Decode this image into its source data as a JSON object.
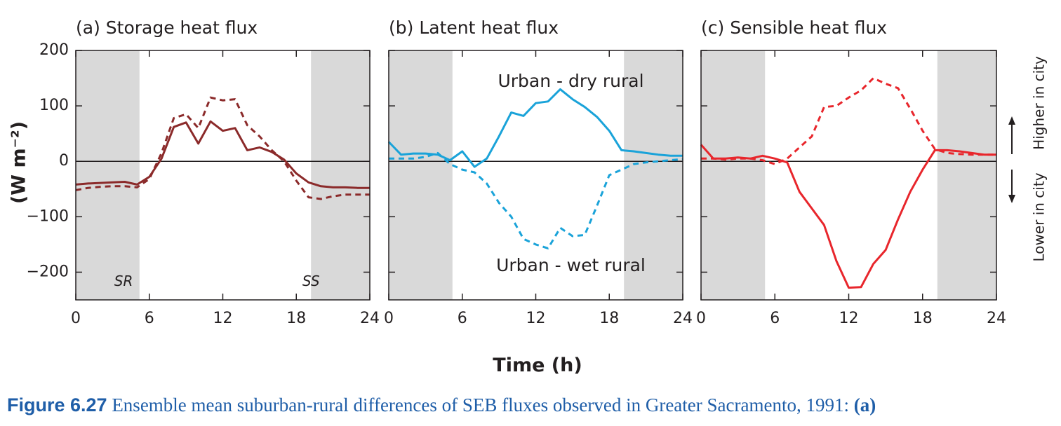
{
  "colors": {
    "storage": "#8b2a2a",
    "latent": "#1aa3d9",
    "sensible": "#e8262c",
    "night_shade": "#d9d9d9",
    "text": "#231f20",
    "caption": "#1f5ea8"
  },
  "figure": {
    "ylabel": "(W m⁻²)",
    "xlabel": "Time (h)",
    "side_labels": {
      "higher": "Higher in city",
      "lower": "Lower in city"
    },
    "caption": {
      "number": "Figure 6.27",
      "text": "Ensemble mean suburban-rural differences of SEB fluxes observed in Greater Sacramento, 1991:",
      "tail": "(a)"
    }
  },
  "chart_data": [
    {
      "type": "line",
      "title": "(a) Storage heat flux",
      "xlim": [
        0,
        24
      ],
      "ylim": [
        -250,
        200
      ],
      "xticks": [
        0,
        6,
        12,
        18,
        24
      ],
      "yticks": [
        200,
        100,
        0,
        -100,
        -200
      ],
      "night_shading": [
        [
          0,
          5.2
        ],
        [
          19.2,
          24
        ]
      ],
      "annotations": [
        "SR",
        "SS"
      ],
      "series": [
        {
          "style": "solid",
          "color": "storage",
          "x": [
            0,
            1,
            2,
            3,
            4,
            5,
            6,
            7,
            8,
            9,
            10,
            11,
            12,
            13,
            14,
            15,
            16,
            17,
            18,
            19,
            20,
            21,
            22,
            23,
            24
          ],
          "y": [
            -42,
            -40,
            -39,
            -38,
            -37,
            -42,
            -28,
            5,
            62,
            70,
            32,
            72,
            55,
            60,
            20,
            25,
            17,
            3,
            -22,
            -38,
            -45,
            -47,
            -47,
            -48,
            -48
          ]
        },
        {
          "style": "dashed",
          "color": "storage",
          "x": [
            0,
            1,
            2,
            3,
            4,
            5,
            6,
            7,
            8,
            9,
            10,
            11,
            12,
            13,
            14,
            15,
            16,
            17,
            18,
            19,
            20,
            21,
            22,
            23,
            24
          ],
          "y": [
            -52,
            -48,
            -46,
            -45,
            -45,
            -47,
            -32,
            15,
            78,
            85,
            60,
            115,
            110,
            112,
            65,
            45,
            20,
            0,
            -35,
            -65,
            -68,
            -63,
            -60,
            -60,
            -60
          ]
        }
      ]
    },
    {
      "type": "line",
      "title": "(b) Latent heat flux",
      "xlim": [
        0,
        24
      ],
      "ylim": [
        -250,
        200
      ],
      "xticks": [
        0,
        6,
        12,
        18,
        24
      ],
      "yticks": [
        200,
        100,
        0,
        -100,
        -200
      ],
      "night_shading": [
        [
          0,
          5.2
        ],
        [
          19.2,
          24
        ]
      ],
      "series": [
        {
          "name": "Urban - dry rural",
          "style": "solid",
          "color": "latent",
          "x": [
            0,
            1,
            2,
            3,
            4,
            5,
            6,
            7,
            8,
            9,
            10,
            11,
            12,
            13,
            14,
            15,
            16,
            17,
            18,
            19,
            20,
            21,
            22,
            23,
            24
          ],
          "y": [
            35,
            12,
            14,
            14,
            12,
            2,
            18,
            -10,
            5,
            45,
            88,
            82,
            105,
            108,
            130,
            112,
            98,
            80,
            55,
            20,
            18,
            15,
            12,
            10,
            10
          ]
        },
        {
          "name": "Urban - wet rural",
          "style": "dashed",
          "color": "latent",
          "x": [
            0,
            1,
            2,
            3,
            4,
            5,
            6,
            7,
            8,
            9,
            10,
            11,
            12,
            13,
            14,
            15,
            16,
            17,
            18,
            19,
            20,
            21,
            22,
            23,
            24
          ],
          "y": [
            5,
            5,
            5,
            8,
            15,
            -5,
            -15,
            -20,
            -40,
            -75,
            -100,
            -140,
            -150,
            -157,
            -120,
            -135,
            -133,
            -80,
            -25,
            -15,
            -5,
            -2,
            0,
            2,
            4
          ]
        }
      ]
    },
    {
      "type": "line",
      "title": "(c) Sensible heat flux",
      "xlim": [
        0,
        24
      ],
      "ylim": [
        -250,
        200
      ],
      "xticks": [
        0,
        6,
        12,
        18,
        24
      ],
      "yticks": [
        200,
        100,
        0,
        -100,
        -200
      ],
      "night_shading": [
        [
          0,
          5.2
        ],
        [
          19.2,
          24
        ]
      ],
      "series": [
        {
          "style": "solid",
          "color": "sensible",
          "x": [
            0,
            1,
            2,
            3,
            4,
            5,
            6,
            7,
            8,
            9,
            10,
            11,
            12,
            13,
            14,
            15,
            16,
            17,
            18,
            19,
            20,
            21,
            22,
            23,
            24
          ],
          "y": [
            30,
            5,
            5,
            7,
            5,
            10,
            5,
            -2,
            -55,
            -85,
            -115,
            -180,
            -228,
            -227,
            -185,
            -160,
            -105,
            -55,
            -15,
            20,
            20,
            18,
            15,
            12,
            12
          ]
        },
        {
          "style": "dashed",
          "color": "sensible",
          "x": [
            0,
            1,
            2,
            3,
            4,
            5,
            6,
            7,
            8,
            9,
            10,
            11,
            12,
            13,
            14,
            15,
            16,
            17,
            18,
            19,
            20,
            21,
            22,
            23,
            24
          ],
          "y": [
            5,
            5,
            3,
            5,
            5,
            2,
            -5,
            5,
            25,
            45,
            98,
            100,
            115,
            128,
            150,
            140,
            132,
            95,
            55,
            22,
            15,
            13,
            12,
            12,
            12
          ]
        }
      ]
    }
  ]
}
